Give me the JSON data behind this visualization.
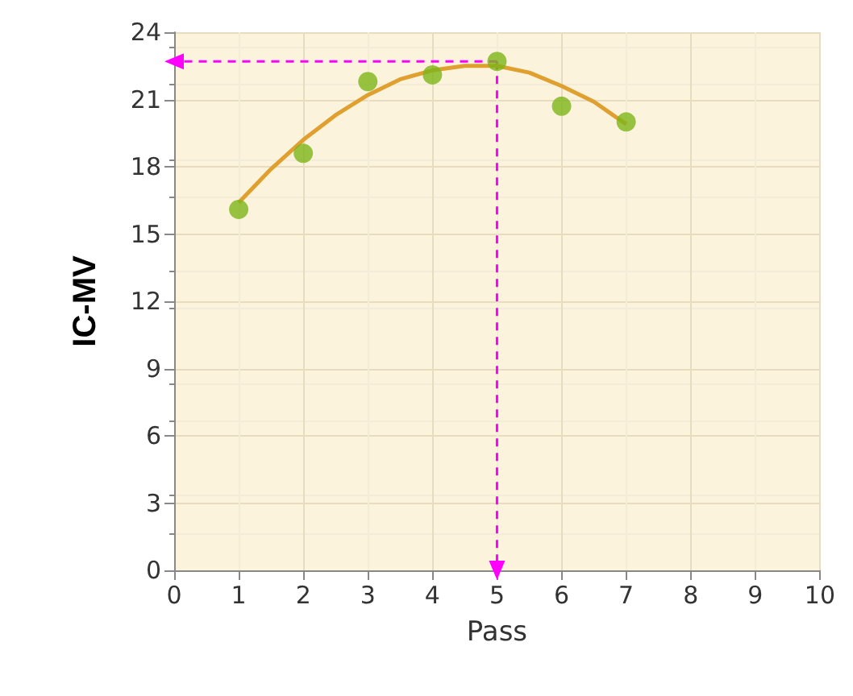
{
  "chart_data": {
    "type": "scatter",
    "xlabel": "Pass",
    "ylabel": "IC-MV",
    "xlim": [
      0,
      10
    ],
    "xticks": [
      0,
      1,
      2,
      3,
      4,
      5,
      6,
      7,
      8,
      9,
      10
    ],
    "ylim": [
      0,
      24
    ],
    "yticks": [
      0,
      3,
      6,
      9,
      12,
      15,
      18,
      21,
      24
    ],
    "grid": true,
    "series": [
      {
        "color": "#7cb518",
        "x": [
          1,
          2,
          3,
          4,
          5,
          6,
          7
        ],
        "values": [
          16.1,
          18.6,
          21.8,
          22.1,
          22.7,
          20.7,
          20.0
        ]
      },
      {
        "type": "line",
        "color": "#e0a030",
        "x": [
          1,
          1.5,
          2,
          2.5,
          3,
          3.5,
          4,
          4.5,
          5,
          5.5,
          6,
          6.5,
          7
        ],
        "values": [
          16.4,
          17.9,
          19.2,
          20.3,
          21.2,
          21.9,
          22.3,
          22.5,
          22.5,
          22.2,
          21.6,
          20.9,
          19.9
        ]
      },
      {
        "type": "line",
        "color": "#ff00ff",
        "line_style": "dashed",
        "x": [
          5,
          0
        ],
        "values": [
          22.7,
          22.7
        ]
      },
      {
        "type": "line",
        "color": "#ff00ff",
        "line_style": "dashed",
        "x": [
          5,
          5
        ],
        "values": [
          22.7,
          0
        ]
      }
    ]
  }
}
